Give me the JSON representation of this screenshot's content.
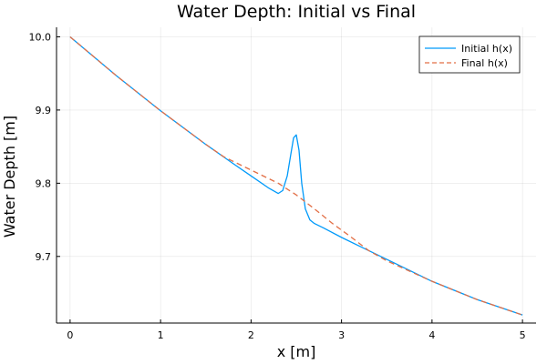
{
  "chart_data": {
    "type": "line",
    "title": "Water Depth: Initial vs Final",
    "xlabel": "x [m]",
    "ylabel": "Water Depth [m]",
    "xlim": [
      -0.15,
      5.15
    ],
    "ylim": [
      9.609,
      10.013
    ],
    "x_ticks": [
      0,
      1,
      2,
      3,
      4,
      5
    ],
    "x_tick_labels": [
      "0",
      "1",
      "2",
      "3",
      "4",
      "5"
    ],
    "y_ticks": [
      9.7,
      9.8,
      9.9,
      10.0
    ],
    "y_tick_labels": [
      "9.7",
      "9.8",
      "9.9",
      "10.0"
    ],
    "grid": true,
    "legend_position": "top-right",
    "series": [
      {
        "name": "Initial h(x)",
        "color": "#009AFA",
        "dash": "solid",
        "x": [
          0,
          0.5,
          1.0,
          1.5,
          1.8,
          2.0,
          2.2,
          2.3,
          2.35,
          2.4,
          2.44,
          2.47,
          2.5,
          2.53,
          2.56,
          2.6,
          2.65,
          2.7,
          2.8,
          3.0,
          3.2,
          3.4,
          3.6,
          4.0,
          4.5,
          5.0
        ],
        "y": [
          10.0,
          9.948,
          9.899,
          9.853,
          9.827,
          9.81,
          9.793,
          9.786,
          9.79,
          9.81,
          9.84,
          9.862,
          9.866,
          9.845,
          9.8,
          9.765,
          9.75,
          9.745,
          9.739,
          9.726,
          9.714,
          9.702,
          9.69,
          9.666,
          9.641,
          9.62
        ]
      },
      {
        "name": "Final h(x)",
        "color": "#E26F46",
        "dash": "dashed",
        "x": [
          0,
          0.5,
          1.0,
          1.5,
          1.7,
          2.0,
          2.3,
          2.5,
          2.7,
          2.9,
          3.1,
          3.3,
          3.5,
          4.0,
          4.5,
          5.0
        ],
        "y": [
          10.0,
          9.948,
          9.899,
          9.853,
          9.836,
          9.818,
          9.8,
          9.784,
          9.765,
          9.745,
          9.727,
          9.708,
          9.694,
          9.666,
          9.641,
          9.62
        ]
      }
    ]
  }
}
